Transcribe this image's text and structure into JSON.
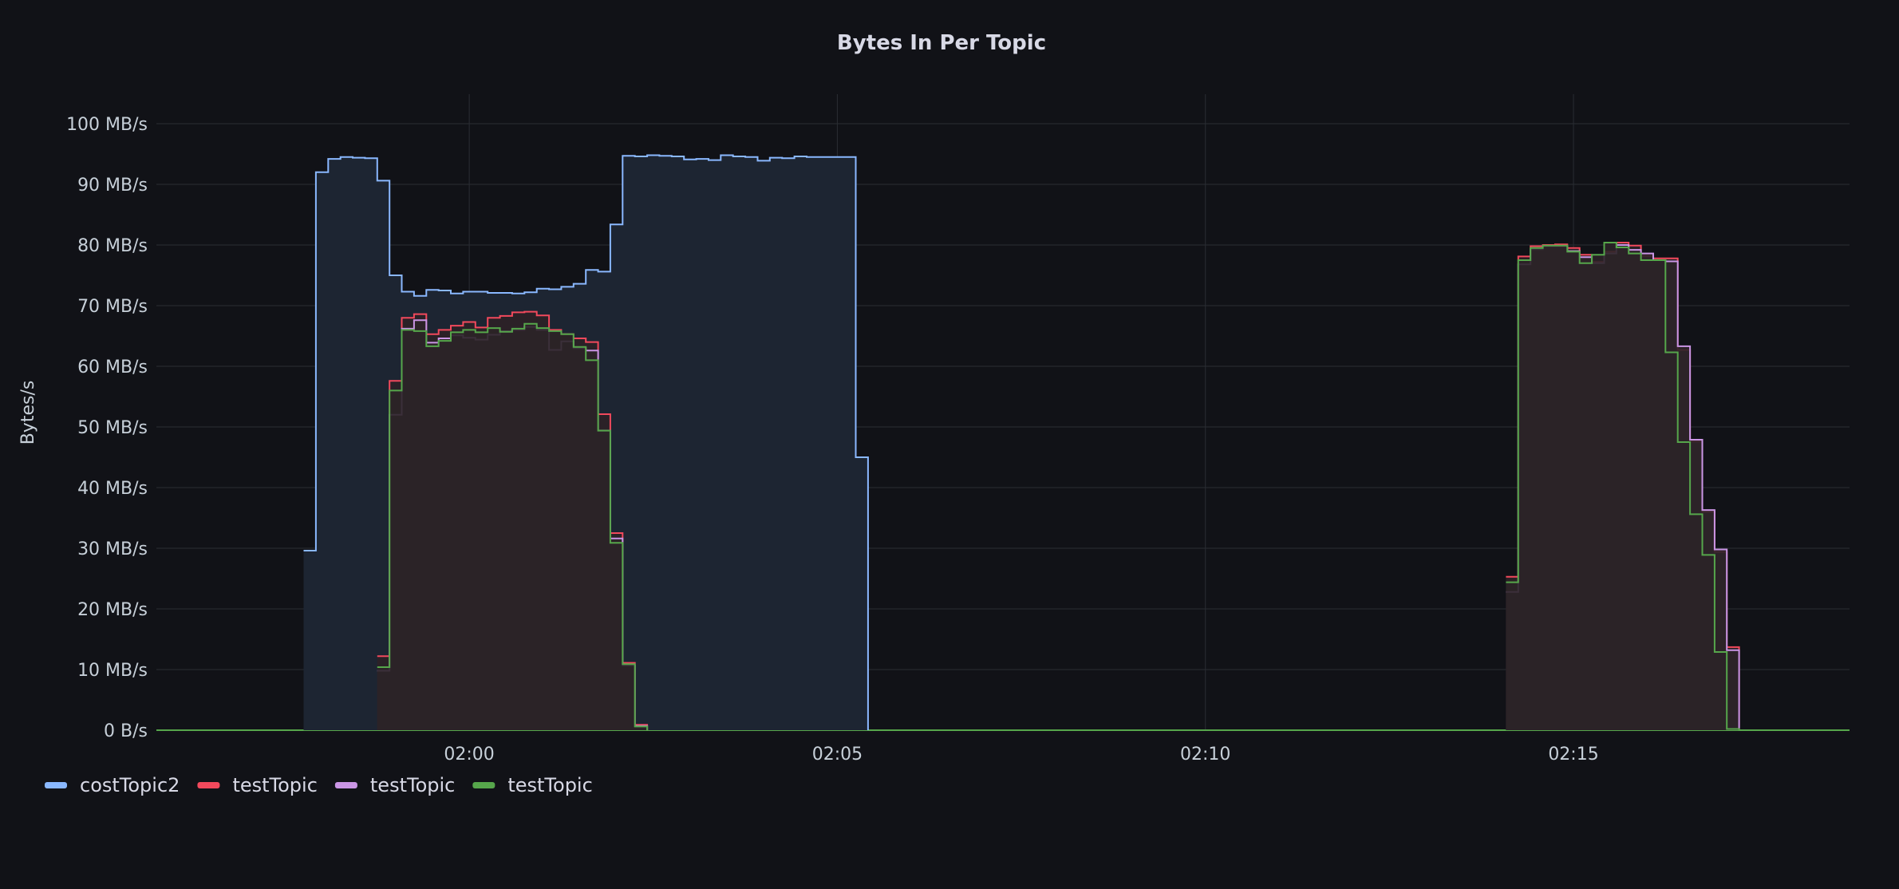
{
  "chart_data": {
    "type": "line",
    "title": "Bytes In Per Topic",
    "ylabel": "Bytes/s",
    "xlabel": "",
    "y_unit": "MB/s",
    "ylim": [
      0,
      100
    ],
    "xlim": [
      "01:55:45",
      "02:18:45"
    ],
    "step": true,
    "grid": true,
    "legend_position": "bottom-left",
    "y_ticks": [
      "0 B/s",
      "10 MB/s",
      "20 MB/s",
      "30 MB/s",
      "40 MB/s",
      "50 MB/s",
      "60 MB/s",
      "70 MB/s",
      "80 MB/s",
      "90 MB/s",
      "100 MB/s"
    ],
    "x_ticks": [
      "02:00",
      "02:05",
      "02:10",
      "02:15"
    ],
    "series": [
      {
        "name": "costTopic2",
        "color": "#8ab8ff",
        "fill": "#1d2532",
        "points": [
          [
            "01:57:45",
            29.6
          ],
          [
            "01:57:55",
            92.0
          ],
          [
            "01:58:05",
            94.2
          ],
          [
            "01:58:15",
            94.5
          ],
          [
            "01:58:25",
            94.4
          ],
          [
            "01:58:35",
            94.3
          ],
          [
            "01:58:45",
            90.6
          ],
          [
            "01:58:55",
            75.0
          ],
          [
            "01:59:05",
            72.3
          ],
          [
            "01:59:15",
            71.6
          ],
          [
            "01:59:25",
            72.6
          ],
          [
            "01:59:35",
            72.5
          ],
          [
            "01:59:45",
            72.0
          ],
          [
            "01:59:55",
            72.3
          ],
          [
            "02:00:05",
            72.3
          ],
          [
            "02:00:15",
            72.1
          ],
          [
            "02:00:25",
            72.1
          ],
          [
            "02:00:35",
            72.0
          ],
          [
            "02:00:45",
            72.2
          ],
          [
            "02:00:55",
            72.8
          ],
          [
            "02:01:05",
            72.7
          ],
          [
            "02:01:15",
            73.1
          ],
          [
            "02:01:25",
            73.6
          ],
          [
            "02:01:35",
            75.9
          ],
          [
            "02:01:45",
            75.6
          ],
          [
            "02:01:55",
            83.4
          ],
          [
            "02:02:05",
            94.7
          ],
          [
            "02:02:15",
            94.6
          ],
          [
            "02:02:25",
            94.8
          ],
          [
            "02:02:35",
            94.7
          ],
          [
            "02:02:45",
            94.6
          ],
          [
            "02:02:55",
            94.1
          ],
          [
            "02:03:05",
            94.2
          ],
          [
            "02:03:15",
            94.0
          ],
          [
            "02:03:25",
            94.8
          ],
          [
            "02:03:35",
            94.6
          ],
          [
            "02:03:45",
            94.5
          ],
          [
            "02:03:55",
            93.9
          ],
          [
            "02:04:05",
            94.4
          ],
          [
            "02:04:15",
            94.3
          ],
          [
            "02:04:25",
            94.6
          ],
          [
            "02:04:35",
            94.5
          ],
          [
            "02:04:45",
            94.5
          ],
          [
            "02:04:55",
            94.5
          ],
          [
            "02:05:05",
            94.5
          ],
          [
            "02:05:15",
            45.0
          ],
          [
            "02:05:25",
            0
          ]
        ]
      },
      {
        "name": "testTopic",
        "color": "#f2495c",
        "fill": "#2e2126",
        "points": [
          [
            "01:58:45",
            12.2
          ],
          [
            "01:58:55",
            57.6
          ],
          [
            "01:59:05",
            68.0
          ],
          [
            "01:59:15",
            68.6
          ],
          [
            "01:59:25",
            65.3
          ],
          [
            "01:59:35",
            66.0
          ],
          [
            "01:59:45",
            66.7
          ],
          [
            "01:59:55",
            67.3
          ],
          [
            "02:00:05",
            66.4
          ],
          [
            "02:00:15",
            68.0
          ],
          [
            "02:00:25",
            68.3
          ],
          [
            "02:00:35",
            68.9
          ],
          [
            "02:00:45",
            69.0
          ],
          [
            "02:00:55",
            68.4
          ],
          [
            "02:01:05",
            66.0
          ],
          [
            "02:01:15",
            65.3
          ],
          [
            "02:01:25",
            64.6
          ],
          [
            "02:01:35",
            64.0
          ],
          [
            "02:01:45",
            52.1
          ],
          [
            "02:01:55",
            32.5
          ],
          [
            "02:02:05",
            11.1
          ],
          [
            "02:02:15",
            0.9
          ],
          [
            "02:02:25",
            0
          ],
          [
            "02:14:05",
            25.3
          ],
          [
            "02:14:15",
            78.1
          ],
          [
            "02:14:25",
            79.8
          ],
          [
            "02:14:35",
            80.0
          ],
          [
            "02:14:45",
            80.1
          ],
          [
            "02:14:55",
            79.5
          ],
          [
            "02:15:05",
            78.4
          ],
          [
            "02:15:15",
            77.2
          ],
          [
            "02:15:25",
            78.9
          ],
          [
            "02:15:35",
            80.4
          ],
          [
            "02:15:45",
            79.9
          ],
          [
            "02:15:55",
            78.2
          ],
          [
            "02:16:05",
            77.8
          ],
          [
            "02:16:15",
            77.8
          ],
          [
            "02:16:25",
            62.7
          ],
          [
            "02:16:35",
            47.6
          ],
          [
            "02:16:45",
            36.0
          ],
          [
            "02:16:55",
            29.4
          ],
          [
            "02:17:05",
            13.7
          ],
          [
            "02:17:15",
            0
          ]
        ]
      },
      {
        "name": "testTopic",
        "color": "#ca95e5",
        "fill": "#2c2429",
        "points": [
          [
            "01:58:45",
            9.8
          ],
          [
            "01:58:55",
            52.0
          ],
          [
            "01:59:05",
            66.2
          ],
          [
            "01:59:15",
            67.6
          ],
          [
            "01:59:25",
            63.9
          ],
          [
            "01:59:35",
            64.6
          ],
          [
            "01:59:45",
            65.1
          ],
          [
            "01:59:55",
            64.7
          ],
          [
            "02:00:05",
            64.4
          ],
          [
            "02:00:15",
            65.2
          ],
          [
            "02:00:25",
            65.7
          ],
          [
            "02:00:35",
            66.0
          ],
          [
            "02:00:45",
            66.5
          ],
          [
            "02:00:55",
            66.0
          ],
          [
            "02:01:05",
            62.7
          ],
          [
            "02:01:15",
            64.1
          ],
          [
            "02:01:25",
            63.0
          ],
          [
            "02:01:35",
            62.6
          ],
          [
            "02:01:45",
            49.4
          ],
          [
            "02:01:55",
            31.6
          ],
          [
            "02:02:05",
            10.7
          ],
          [
            "02:02:15",
            0.7
          ],
          [
            "02:02:25",
            0
          ],
          [
            "02:14:05",
            22.8
          ],
          [
            "02:14:15",
            76.8
          ],
          [
            "02:14:25",
            79.3
          ],
          [
            "02:14:35",
            79.8
          ],
          [
            "02:14:45",
            79.8
          ],
          [
            "02:14:55",
            79.0
          ],
          [
            "02:15:05",
            78.0
          ],
          [
            "02:15:15",
            77.0
          ],
          [
            "02:15:25",
            78.6
          ],
          [
            "02:15:35",
            80.0
          ],
          [
            "02:15:45",
            79.2
          ],
          [
            "02:15:55",
            78.6
          ],
          [
            "02:16:05",
            77.5
          ],
          [
            "02:16:15",
            77.3
          ],
          [
            "02:16:25",
            63.3
          ],
          [
            "02:16:35",
            47.9
          ],
          [
            "02:16:45",
            36.3
          ],
          [
            "02:16:55",
            29.8
          ],
          [
            "02:17:05",
            13.2
          ],
          [
            "02:17:15",
            0
          ]
        ]
      },
      {
        "name": "testTopic",
        "color": "#56a64b",
        "fill": "#2b2427",
        "points": [
          [
            "01:58:45",
            10.4
          ],
          [
            "01:58:55",
            56.0
          ],
          [
            "01:59:05",
            66.0
          ],
          [
            "01:59:15",
            65.8
          ],
          [
            "01:59:25",
            63.3
          ],
          [
            "01:59:35",
            64.2
          ],
          [
            "01:59:45",
            65.6
          ],
          [
            "01:59:55",
            66.0
          ],
          [
            "02:00:05",
            65.6
          ],
          [
            "02:00:15",
            66.3
          ],
          [
            "02:00:25",
            65.7
          ],
          [
            "02:00:35",
            66.2
          ],
          [
            "02:00:45",
            67.0
          ],
          [
            "02:00:55",
            66.3
          ],
          [
            "02:01:05",
            65.8
          ],
          [
            "02:01:15",
            65.3
          ],
          [
            "02:01:25",
            63.2
          ],
          [
            "02:01:35",
            61.0
          ],
          [
            "02:01:45",
            49.4
          ],
          [
            "02:01:55",
            30.9
          ],
          [
            "02:02:05",
            10.9
          ],
          [
            "02:02:15",
            0.6
          ],
          [
            "02:02:25",
            0
          ],
          [
            "02:14:05",
            24.4
          ],
          [
            "02:14:15",
            77.5
          ],
          [
            "02:14:25",
            79.5
          ],
          [
            "02:14:35",
            79.9
          ],
          [
            "02:14:45",
            79.9
          ],
          [
            "02:14:55",
            78.9
          ],
          [
            "02:15:05",
            77.0
          ],
          [
            "02:15:15",
            78.4
          ],
          [
            "02:15:25",
            80.4
          ],
          [
            "02:15:35",
            79.6
          ],
          [
            "02:15:45",
            78.6
          ],
          [
            "02:15:55",
            77.5
          ],
          [
            "02:16:05",
            77.5
          ],
          [
            "02:16:15",
            62.3
          ],
          [
            "02:16:25",
            47.5
          ],
          [
            "02:16:35",
            35.6
          ],
          [
            "02:16:45",
            28.9
          ],
          [
            "02:16:55",
            12.9
          ],
          [
            "02:17:05",
            0.2
          ],
          [
            "02:17:15",
            0
          ]
        ]
      }
    ]
  }
}
